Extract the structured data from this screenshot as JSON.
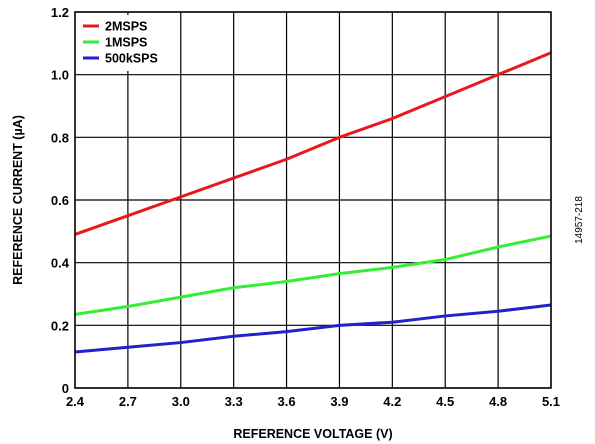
{
  "figure_id": "14957-218",
  "chart_data": {
    "type": "line",
    "xlabel": "REFERENCE VOLTAGE (V)",
    "ylabel": "REFERENCE CURRENT (µA)",
    "xlim": [
      2.4,
      5.1
    ],
    "ylim": [
      0,
      1.2
    ],
    "x_ticks": [
      "2.4",
      "2.7",
      "3.0",
      "3.3",
      "3.6",
      "3.9",
      "4.2",
      "4.5",
      "4.8",
      "5.1"
    ],
    "y_ticks": [
      "0",
      "0.2",
      "0.4",
      "0.6",
      "0.8",
      "1.0",
      "1.2"
    ],
    "grid": true,
    "legend_position": "top-left",
    "x": [
      2.4,
      2.7,
      3.0,
      3.3,
      3.6,
      3.9,
      4.2,
      4.5,
      4.8,
      5.1
    ],
    "series": [
      {
        "name": "2MSPS",
        "color": "#e8191c",
        "values": [
          0.49,
          0.55,
          0.61,
          0.67,
          0.73,
          0.8,
          0.86,
          0.93,
          1.0,
          1.07
        ]
      },
      {
        "name": "1MSPS",
        "color": "#33ee33",
        "values": [
          0.235,
          0.26,
          0.29,
          0.32,
          0.34,
          0.365,
          0.385,
          0.41,
          0.45,
          0.485
        ]
      },
      {
        "name": "500kSPS",
        "color": "#2222cc",
        "values": [
          0.115,
          0.13,
          0.145,
          0.165,
          0.18,
          0.2,
          0.21,
          0.23,
          0.245,
          0.265
        ]
      }
    ]
  }
}
